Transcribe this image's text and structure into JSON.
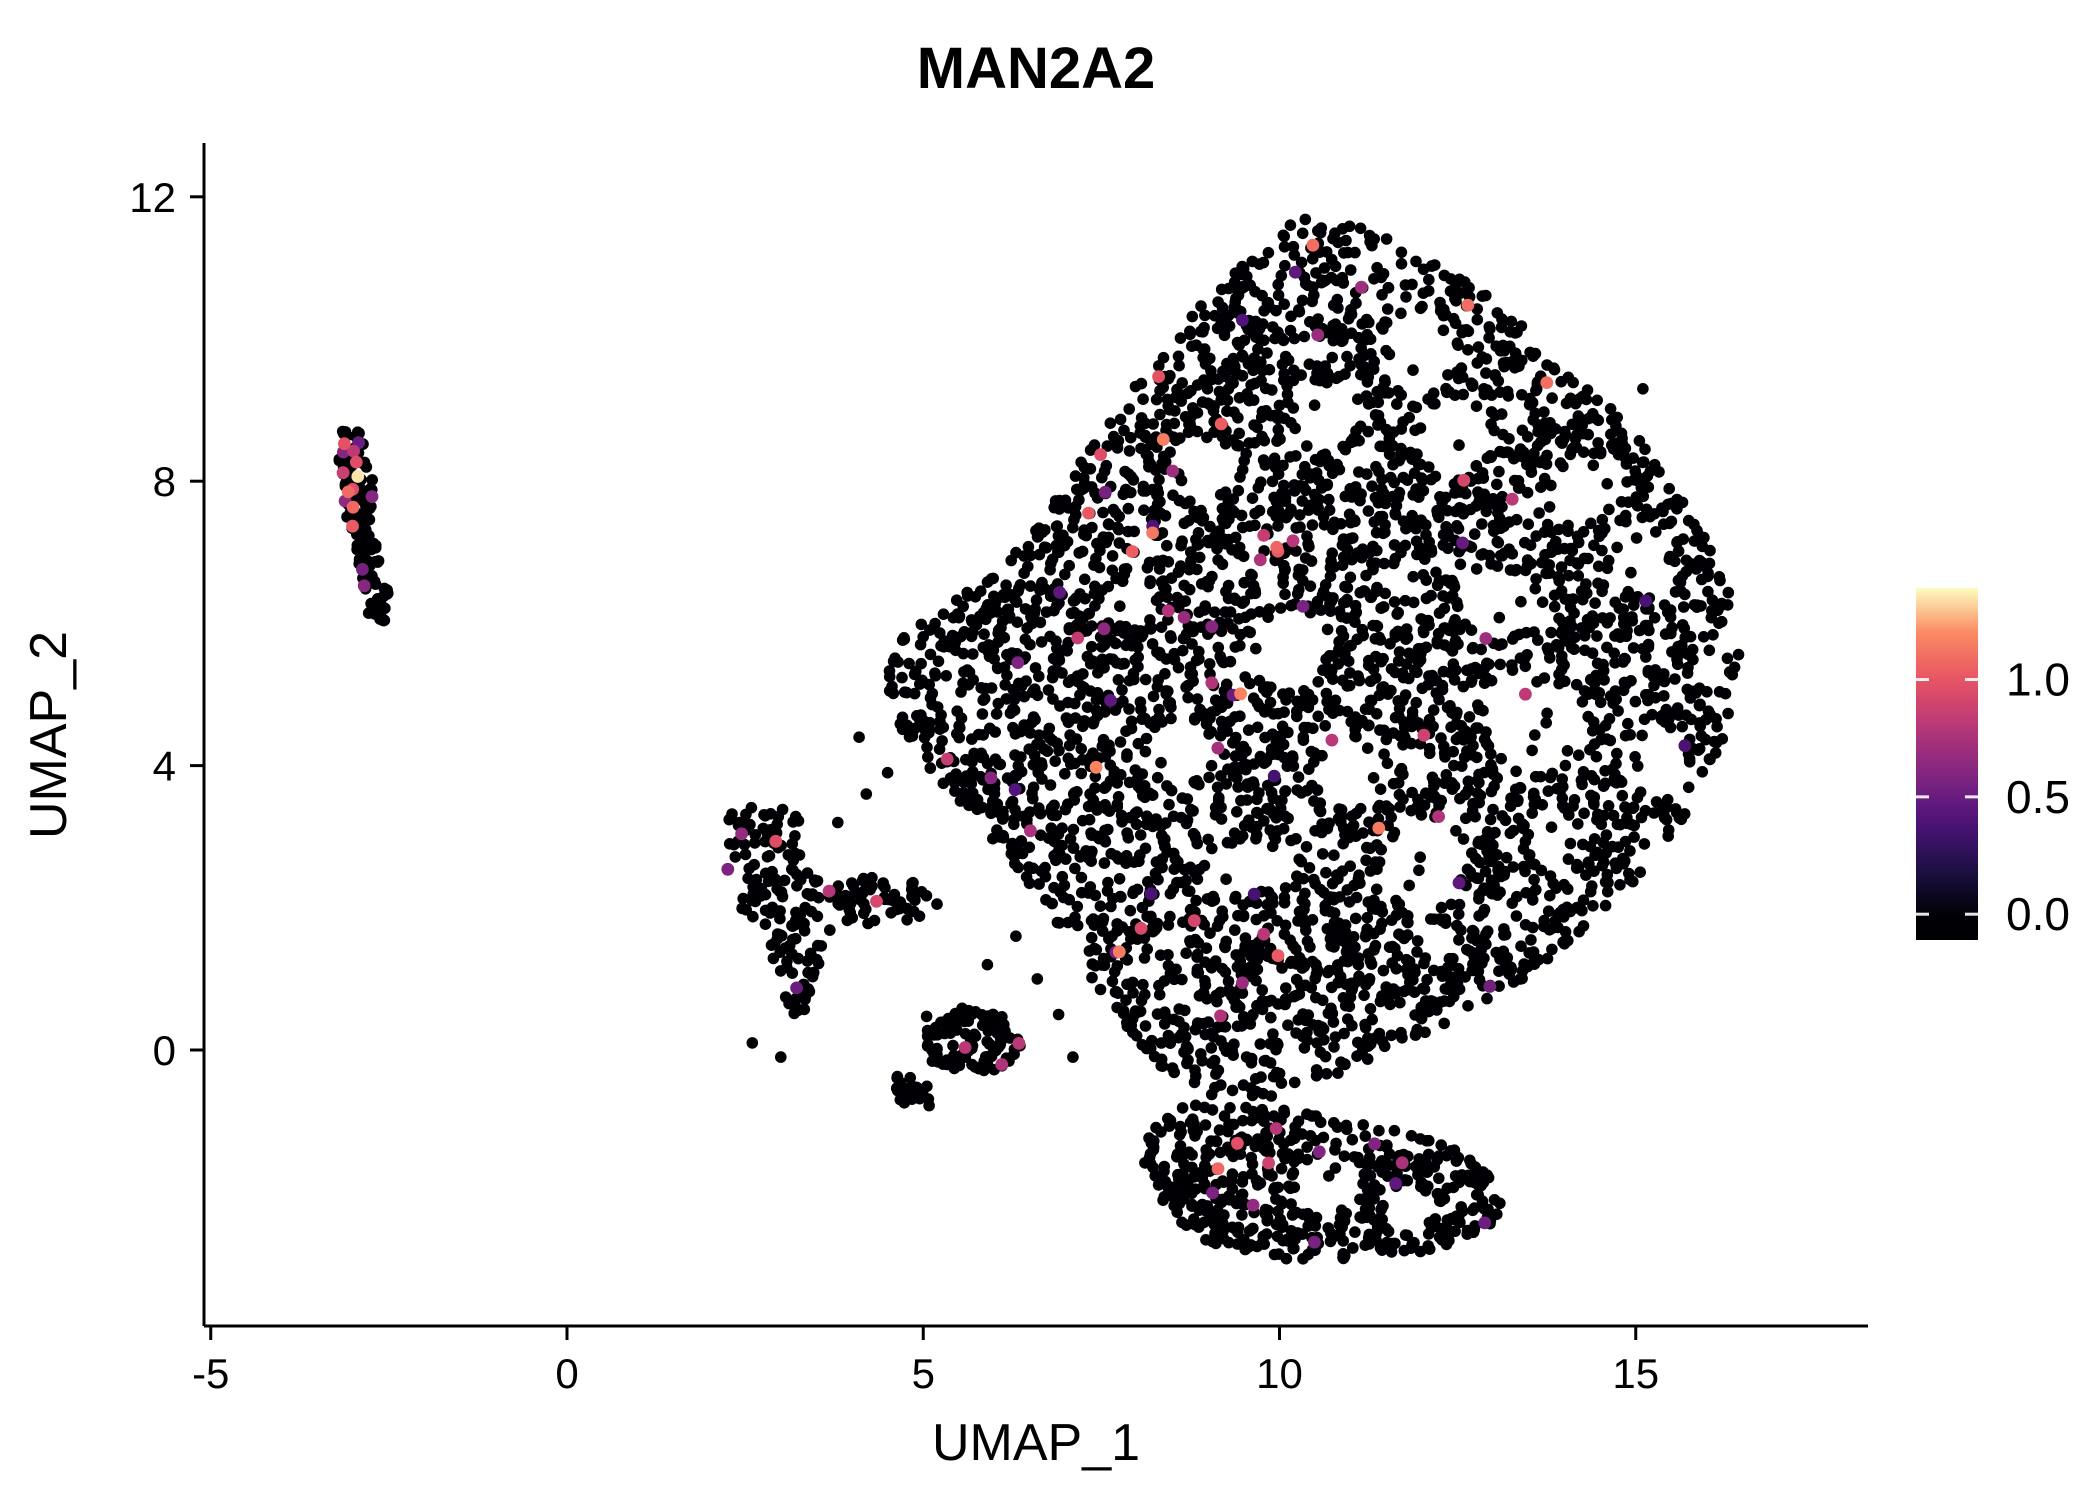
{
  "chart_data": {
    "type": "scatter",
    "title": "MAN2A2",
    "xlabel": "UMAP_1",
    "ylabel": "UMAP_2",
    "xlim": [
      -5.1,
      18.3
    ],
    "ylim": [
      -3.9,
      12.8
    ],
    "xticks": [
      -5,
      0,
      5,
      10,
      15
    ],
    "yticks": [
      0,
      4,
      8,
      12
    ],
    "grid": false,
    "background": "#ffffff",
    "axis_color": "#000000",
    "legend_position": "right",
    "seed": 7,
    "point_radius_px": 5.8,
    "colormap": "magma",
    "colormap_stops": [
      [
        0,
        "#000004"
      ],
      [
        0.14,
        "#1d1147"
      ],
      [
        0.29,
        "#51127c"
      ],
      [
        0.43,
        "#822681"
      ],
      [
        0.57,
        "#b63679"
      ],
      [
        0.71,
        "#e65164"
      ],
      [
        0.86,
        "#fb8861"
      ],
      [
        1,
        "#fcfdbf"
      ]
    ],
    "colorbar": {
      "domain": [
        -0.11,
        1.39
      ],
      "ticks": [
        {
          "label": "1.0",
          "value": 1.0
        },
        {
          "label": "0.5",
          "value": 0.5
        },
        {
          "label": "0.0",
          "value": 0.0
        }
      ]
    },
    "hole_keep": 0.08,
    "holes": [
      [
        11.9,
        9.8,
        0.55
      ],
      [
        12.5,
        8.6,
        0.5
      ],
      [
        10.1,
        5.6,
        0.55
      ],
      [
        13.6,
        4.6,
        0.7
      ],
      [
        12.0,
        2.6,
        0.55
      ],
      [
        8.6,
        4.2,
        0.45
      ],
      [
        14.9,
        6.9,
        0.5
      ],
      [
        11.0,
        3.9,
        0.5
      ],
      [
        9.0,
        8.2,
        0.4
      ],
      [
        15.3,
        4.0,
        0.45
      ],
      [
        13.0,
        6.3,
        0.5
      ],
      [
        9.6,
        2.6,
        0.4
      ],
      [
        10.7,
        -1.9,
        0.45
      ],
      [
        11.8,
        -2.25,
        0.35
      ],
      [
        14.2,
        7.8,
        0.4
      ],
      [
        10.6,
        8.9,
        0.45
      ],
      [
        7.9,
        6.3,
        0.35
      ],
      [
        13.9,
        2.9,
        0.4
      ]
    ],
    "clusters": [
      {
        "name": "main-blob",
        "count": 4000,
        "colored_fraction": 0.013,
        "value_range": [
          0.35,
          1.2
        ],
        "polygon": [
          [
            10.3,
            11.7
          ],
          [
            11.2,
            11.55
          ],
          [
            12.0,
            11.2
          ],
          [
            12.7,
            10.8
          ],
          [
            13.3,
            10.3
          ],
          [
            13.8,
            9.7
          ],
          [
            14.6,
            9.1
          ],
          [
            15.3,
            8.3
          ],
          [
            15.9,
            7.4
          ],
          [
            16.3,
            6.5
          ],
          [
            16.45,
            5.6
          ],
          [
            16.35,
            4.7
          ],
          [
            16.0,
            3.8
          ],
          [
            15.5,
            3.0
          ],
          [
            14.9,
            2.3
          ],
          [
            14.2,
            1.6
          ],
          [
            13.4,
            1.0
          ],
          [
            12.6,
            0.5
          ],
          [
            11.8,
            0.1
          ],
          [
            11.0,
            -0.3
          ],
          [
            10.2,
            -0.6
          ],
          [
            9.5,
            -0.75
          ],
          [
            8.9,
            -0.6
          ],
          [
            8.3,
            -0.2
          ],
          [
            7.8,
            0.4
          ],
          [
            7.3,
            1.1
          ],
          [
            6.8,
            1.9
          ],
          [
            6.2,
            2.7
          ],
          [
            5.5,
            3.5
          ],
          [
            4.8,
            4.3
          ],
          [
            4.45,
            5.0
          ],
          [
            4.6,
            5.7
          ],
          [
            5.2,
            6.2
          ],
          [
            5.9,
            6.6
          ],
          [
            6.5,
            7.2
          ],
          [
            7.1,
            8.1
          ],
          [
            7.7,
            9.0
          ],
          [
            8.4,
            9.9
          ],
          [
            9.1,
            10.7
          ],
          [
            9.7,
            11.3
          ]
        ]
      },
      {
        "name": "bottom-lobe",
        "count": 520,
        "colored_fraction": 0.022,
        "value_range": [
          0.4,
          1.1
        ],
        "polygon": [
          [
            8.3,
            -0.8
          ],
          [
            9.1,
            -0.7
          ],
          [
            9.9,
            -0.8
          ],
          [
            10.7,
            -0.95
          ],
          [
            11.5,
            -1.1
          ],
          [
            12.3,
            -1.3
          ],
          [
            12.9,
            -1.7
          ],
          [
            13.15,
            -2.2
          ],
          [
            12.85,
            -2.6
          ],
          [
            12.1,
            -2.85
          ],
          [
            11.2,
            -2.95
          ],
          [
            10.3,
            -3.0
          ],
          [
            9.5,
            -2.9
          ],
          [
            8.8,
            -2.6
          ],
          [
            8.3,
            -2.1
          ],
          [
            8.05,
            -1.5
          ]
        ]
      },
      {
        "name": "mid-cluster",
        "count": 210,
        "colored_fraction": 0.03,
        "value_range": [
          0.4,
          1.2
        ],
        "polygon": [
          [
            2.2,
            2.7
          ],
          [
            2.25,
            3.3
          ],
          [
            2.8,
            3.5
          ],
          [
            3.3,
            3.25
          ],
          [
            3.3,
            2.7
          ],
          [
            3.6,
            2.3
          ],
          [
            4.2,
            2.45
          ],
          [
            4.8,
            2.4
          ],
          [
            5.25,
            2.05
          ],
          [
            4.9,
            1.7
          ],
          [
            4.2,
            1.75
          ],
          [
            3.65,
            1.5
          ],
          [
            3.45,
            0.9
          ],
          [
            3.35,
            0.35
          ],
          [
            3.0,
            0.55
          ],
          [
            2.9,
            1.2
          ],
          [
            2.5,
            1.8
          ]
        ]
      },
      {
        "name": "mid-subcluster",
        "count": 110,
        "colored_fraction": 0.06,
        "value_range": [
          0.5,
          1.0
        ],
        "polygon": [
          [
            4.95,
            0.45
          ],
          [
            5.5,
            0.6
          ],
          [
            6.1,
            0.5
          ],
          [
            6.45,
            0.15
          ],
          [
            6.2,
            -0.25
          ],
          [
            5.6,
            -0.35
          ],
          [
            5.1,
            -0.15
          ]
        ]
      },
      {
        "name": "mid-spur",
        "count": 25,
        "colored_fraction": 0.0,
        "value_range": [
          0.4,
          0.8
        ],
        "polygon": [
          [
            4.6,
            -0.35
          ],
          [
            5.05,
            -0.4
          ],
          [
            5.1,
            -0.8
          ],
          [
            4.65,
            -0.75
          ]
        ]
      },
      {
        "name": "left-cluster",
        "count": 150,
        "colored_fraction": 0.13,
        "value_range": [
          0.5,
          1.35
        ],
        "polygon": [
          [
            -3.2,
            8.3
          ],
          [
            -3.15,
            8.7
          ],
          [
            -2.95,
            8.75
          ],
          [
            -2.78,
            8.4
          ],
          [
            -2.72,
            7.9
          ],
          [
            -2.78,
            7.4
          ],
          [
            -2.62,
            6.9
          ],
          [
            -2.5,
            6.4
          ],
          [
            -2.55,
            6.0
          ],
          [
            -2.78,
            6.05
          ],
          [
            -2.88,
            6.5
          ],
          [
            -2.95,
            7.0
          ],
          [
            -3.1,
            7.5
          ]
        ]
      }
    ],
    "outliers": [
      [
        4.2,
        3.6
      ],
      [
        3.8,
        3.2
      ],
      [
        6.6,
        1.0
      ],
      [
        6.9,
        0.5
      ],
      [
        6.3,
        1.6
      ],
      [
        5.9,
        1.2
      ],
      [
        7.1,
        -0.1
      ],
      [
        4.5,
        3.9
      ],
      [
        2.6,
        0.1
      ],
      [
        3.0,
        -0.1
      ],
      [
        15.1,
        9.3
      ],
      [
        4.1,
        4.4
      ]
    ]
  }
}
